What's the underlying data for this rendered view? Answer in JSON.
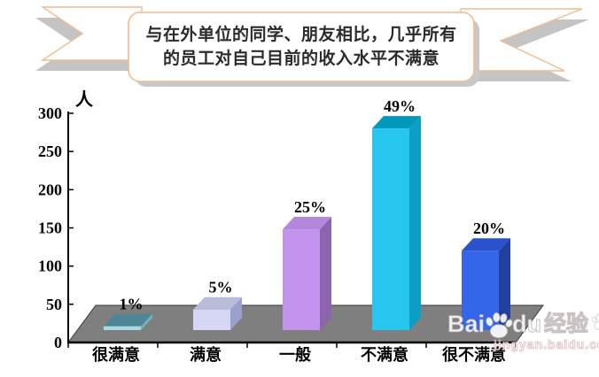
{
  "banner": {
    "line1": "与在外单位的同学、朋友相比，几乎所有",
    "line2": "的员工对自己目前的收入水平不满意",
    "border_color": "#f2bb8e",
    "shadow_color": "#c4c4c4"
  },
  "chart_data": {
    "type": "bar",
    "style": "3d-column",
    "title": "",
    "xlabel": "",
    "ylabel": "人",
    "categories": [
      "很满意",
      "满意",
      "一般",
      "不满意",
      "很不满意"
    ],
    "data_labels": [
      "1%",
      "5%",
      "25%",
      "49%",
      "20%"
    ],
    "values_percent": [
      1,
      5,
      25,
      49,
      20
    ],
    "values_people_approx": [
      5,
      27,
      132,
      264,
      104
    ],
    "y_ticks": [
      0,
      50,
      100,
      150,
      200,
      250,
      300
    ],
    "ylim": [
      0,
      300
    ],
    "grid": false,
    "legend": "none",
    "floor_color": "#7f7f7f",
    "axis_color": "#000000",
    "bar_colors": [
      {
        "front": "#a5dbe3",
        "top": "#4e8694",
        "side": "#79aebc"
      },
      {
        "front": "#d5d7f4",
        "top": "#b7bcdb",
        "side": "#9ba1cd"
      },
      {
        "front": "#c493ee",
        "top": "#b288dd",
        "side": "#8a64ad"
      },
      {
        "front": "#27c6ef",
        "top": "#0098ba",
        "side": "#0c9fc6"
      },
      {
        "front": "#3366e8",
        "top": "#2952cc",
        "side": "#203f9e"
      }
    ]
  },
  "watermark": {
    "brand_prefix": "Bai",
    "brand_suffix": "du",
    "brand_cn": "经验",
    "url": "jingyan.baidu.com",
    "paw_icon": "baidu-paw"
  }
}
